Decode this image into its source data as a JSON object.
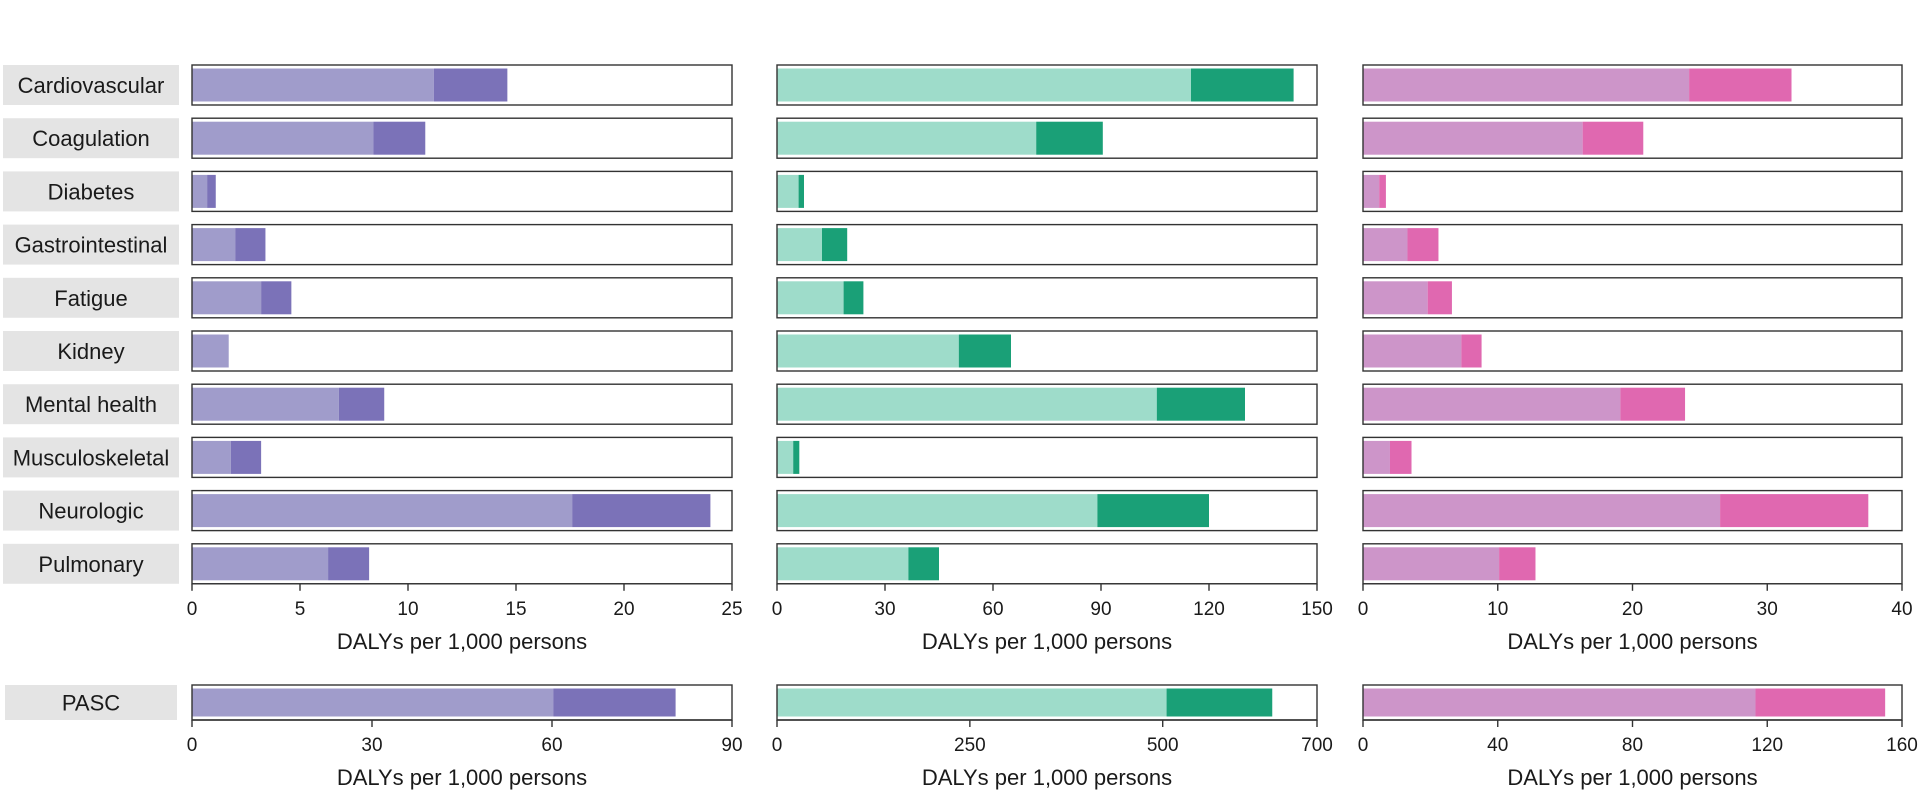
{
  "colors": {
    "label_bg": "#e4e4e4",
    "axis": "#333333",
    "frame": "#333333",
    "purple_light": "#a09ccb",
    "purple_dark": "#7b72b8",
    "green_light": "#9edcca",
    "green_dark": "#1aa077",
    "pink_light": "#cd95c9",
    "pink_dark": "#e068b0"
  },
  "categories": [
    "Cardiovascular",
    "Coagulation",
    "Diabetes",
    "Gastrointestinal",
    "Fatigue",
    "Kidney",
    "Mental health",
    "Musculoskeletal",
    "Neurologic",
    "Pulmonary"
  ],
  "pasc_label": "PASC",
  "chart_data": [
    {
      "type": "bar",
      "orientation": "horizontal",
      "stacked": true,
      "panel": "top-left",
      "categories": [
        "Cardiovascular",
        "Coagulation",
        "Diabetes",
        "Gastrointestinal",
        "Fatigue",
        "Kidney",
        "Mental health",
        "Musculoskeletal",
        "Neurologic",
        "Pulmonary"
      ],
      "series": [
        {
          "name": "light",
          "color": "#a09ccb",
          "values": [
            11.2,
            8.4,
            0.7,
            2.0,
            3.2,
            1.7,
            6.8,
            1.8,
            17.6,
            6.3
          ]
        },
        {
          "name": "dark",
          "color": "#7b72b8",
          "values": [
            3.4,
            2.4,
            0.4,
            1.4,
            1.4,
            0.0,
            2.1,
            1.4,
            6.4,
            1.9
          ]
        }
      ],
      "xlabel": "DALYs per 1,000 persons",
      "xlim": [
        0,
        25
      ],
      "xticks": [
        0,
        5,
        10,
        15,
        20,
        25
      ]
    },
    {
      "type": "bar",
      "orientation": "horizontal",
      "stacked": true,
      "panel": "top-middle",
      "categories": [
        "Cardiovascular",
        "Coagulation",
        "Diabetes",
        "Gastrointestinal",
        "Fatigue",
        "Kidney",
        "Mental health",
        "Musculoskeletal",
        "Neurologic",
        "Pulmonary"
      ],
      "series": [
        {
          "name": "light",
          "color": "#9edcca",
          "values": [
            115,
            72,
            6,
            12.5,
            18.5,
            50.5,
            105.5,
            4.5,
            89,
            36.5
          ]
        },
        {
          "name": "dark",
          "color": "#1aa077",
          "values": [
            28.5,
            18.5,
            1.5,
            7,
            5.5,
            14.5,
            24.5,
            1.7,
            31,
            8.5
          ]
        }
      ],
      "xlabel": "DALYs per 1,000 persons",
      "xlim": [
        0,
        150
      ],
      "xticks": [
        0,
        30,
        60,
        90,
        120,
        150
      ]
    },
    {
      "type": "bar",
      "orientation": "horizontal",
      "stacked": true,
      "panel": "top-right",
      "categories": [
        "Cardiovascular",
        "Coagulation",
        "Diabetes",
        "Gastrointestinal",
        "Fatigue",
        "Kidney",
        "Mental health",
        "Musculoskeletal",
        "Neurologic",
        "Pulmonary"
      ],
      "series": [
        {
          "name": "light",
          "color": "#cd95c9",
          "values": [
            24.2,
            16.3,
            1.2,
            3.3,
            4.8,
            7.3,
            19.1,
            2.0,
            26.5,
            10.1
          ]
        },
        {
          "name": "dark",
          "color": "#e068b0",
          "values": [
            7.6,
            4.5,
            0.5,
            2.3,
            1.8,
            1.5,
            4.8,
            1.6,
            11.0,
            2.7
          ]
        }
      ],
      "xlabel": "DALYs per 1,000 persons",
      "xlim": [
        0,
        40
      ],
      "xticks": [
        0,
        10,
        20,
        30,
        40
      ]
    },
    {
      "type": "bar",
      "orientation": "horizontal",
      "stacked": true,
      "panel": "bottom-left",
      "categories": [
        "PASC"
      ],
      "series": [
        {
          "name": "light",
          "color": "#a09ccb",
          "values": [
            60.2
          ]
        },
        {
          "name": "dark",
          "color": "#7b72b8",
          "values": [
            20.4
          ]
        }
      ],
      "xlabel": "DALYs per 1,000 persons",
      "xlim": [
        0,
        90
      ],
      "xticks": [
        0,
        30,
        60,
        90
      ]
    },
    {
      "type": "bar",
      "orientation": "horizontal",
      "stacked": true,
      "panel": "bottom-middle",
      "categories": [
        "PASC"
      ],
      "series": [
        {
          "name": "light",
          "color": "#9edcca",
          "values": [
            505
          ]
        },
        {
          "name": "dark",
          "color": "#1aa077",
          "values": [
            137
          ]
        }
      ],
      "xlabel": "DALYs per 1,000 persons",
      "xlim": [
        0,
        700
      ],
      "xticks": [
        0,
        250,
        500,
        700
      ]
    },
    {
      "type": "bar",
      "orientation": "horizontal",
      "stacked": true,
      "panel": "bottom-right",
      "categories": [
        "PASC"
      ],
      "series": [
        {
          "name": "light",
          "color": "#cd95c9",
          "values": [
            116.5
          ]
        },
        {
          "name": "dark",
          "color": "#e068b0",
          "values": [
            38.5
          ]
        }
      ],
      "xlabel": "DALYs per 1,000 persons",
      "xlim": [
        0,
        160
      ],
      "xticks": [
        0,
        40,
        80,
        120,
        160
      ]
    }
  ]
}
